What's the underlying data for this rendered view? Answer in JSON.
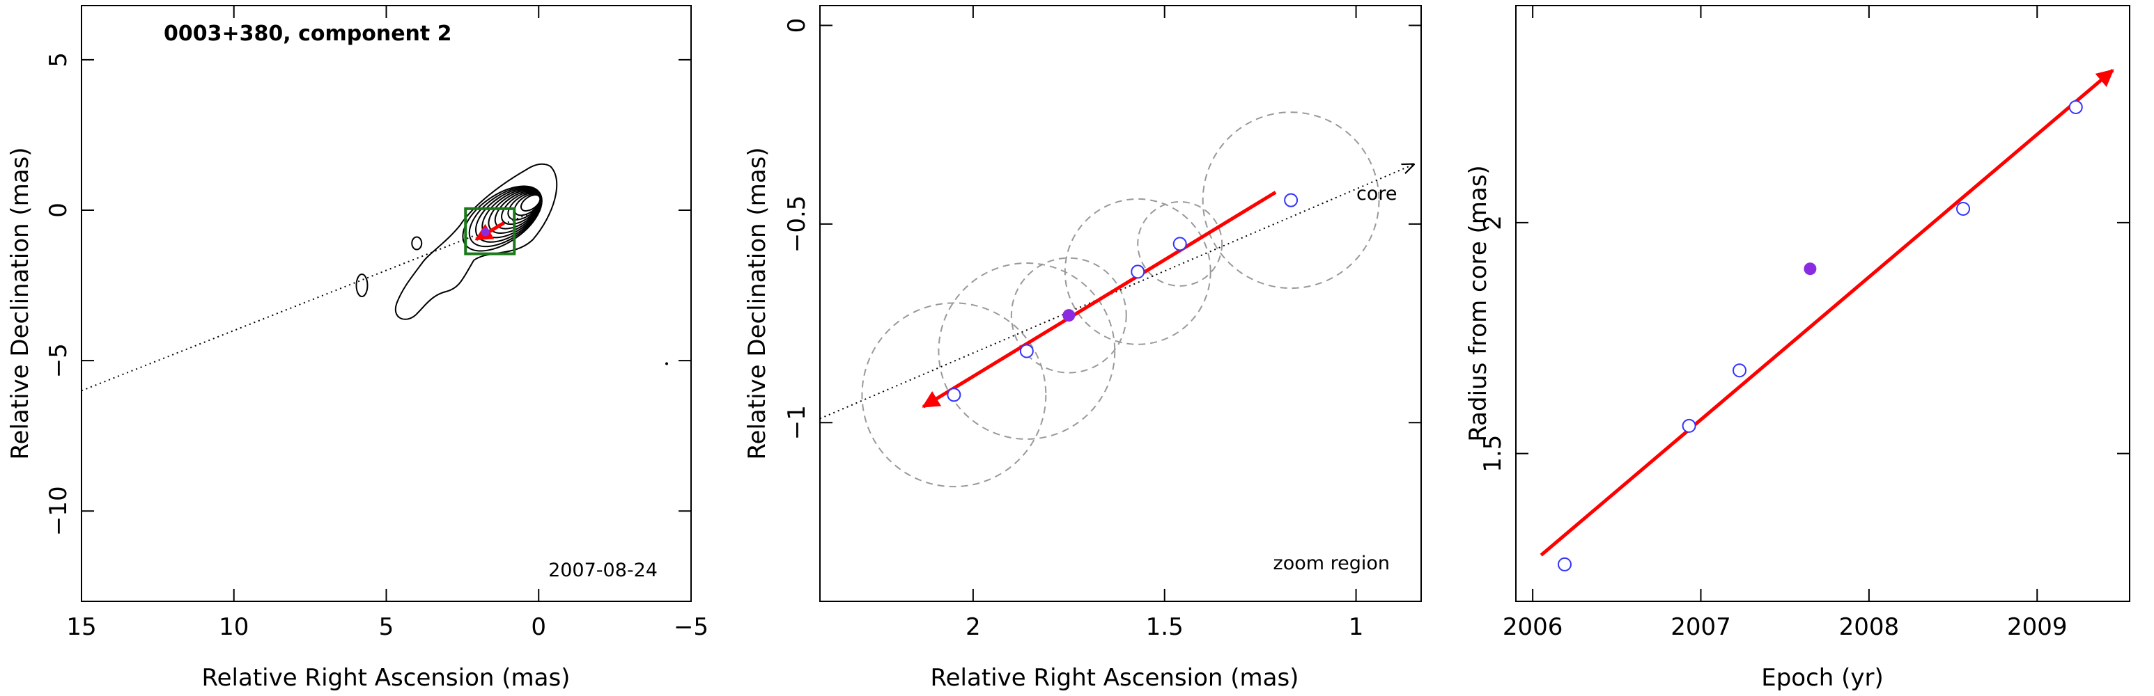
{
  "colors": {
    "motion_arrow": "#ff0000",
    "observed_epoch": "#8a2be2",
    "other_epochs": "#3333ff",
    "zoom_box": "#1a7a1a",
    "fitted_circles": "#999999",
    "contours": "#000000"
  },
  "chart_data": [
    {
      "type": "scatter",
      "subtype": "contour-map",
      "title": "0003+380, component 2",
      "xlabel": "Relative Right Ascension (mas)",
      "ylabel": "Relative Declination (mas)",
      "xlim": [
        15,
        -5
      ],
      "ylim": [
        -13,
        6.8
      ],
      "xticks": [
        15,
        10,
        5,
        0,
        -5
      ],
      "yticks": [
        5,
        0,
        -5,
        -10
      ],
      "xtick_labels": [
        "15",
        "10",
        "5",
        "0",
        "−5"
      ],
      "ytick_labels": [
        "5",
        "0",
        "−5",
        "−10"
      ],
      "epoch_label": "2007-08-24",
      "grid": false,
      "zoom_box": {
        "x": [
          2.4,
          0.8
        ],
        "y": [
          -1.45,
          0.05
        ]
      },
      "jet_axis_line": {
        "x": [
          15,
          0
        ],
        "y": [
          -6.0,
          0
        ]
      },
      "motion_arrow": {
        "from": [
          1.15,
          -0.43
        ],
        "to": [
          2.05,
          -0.97
        ]
      },
      "component_marker": [
        1.75,
        -0.73
      ],
      "contours": {
        "core_center": [
          0.3,
          0.3
        ],
        "levels": 10
      }
    },
    {
      "type": "scatter",
      "subtype": "zoom",
      "xlabel": "Relative Right Ascension (mas)",
      "ylabel": "Relative Declination (mas)",
      "xlim": [
        2.4,
        0.83
      ],
      "ylim": [
        -1.45,
        0.05
      ],
      "xticks": [
        2,
        1.5,
        1
      ],
      "yticks": [
        0,
        -0.5,
        -1
      ],
      "xtick_labels": [
        "2",
        "1.5",
        "1"
      ],
      "ytick_labels": [
        "0",
        "−0.5",
        "−1"
      ],
      "core_label": "core",
      "region_label": "zoom region",
      "grid": false,
      "series": [
        {
          "x": [
            2.05,
            1.86,
            1.57,
            1.46,
            1.17
          ],
          "y": [
            -0.93,
            -0.82,
            -0.62,
            -0.55,
            -0.44
          ]
        },
        {
          "x": [
            1.75
          ],
          "y": [
            -0.73
          ]
        }
      ],
      "circles": [
        {
          "x": 2.05,
          "y": -0.93,
          "r": 0.24
        },
        {
          "x": 1.86,
          "y": -0.82,
          "r": 0.23
        },
        {
          "x": 1.75,
          "y": -0.73,
          "r": 0.15
        },
        {
          "x": 1.57,
          "y": -0.62,
          "r": 0.19
        },
        {
          "x": 1.46,
          "y": -0.55,
          "r": 0.11
        },
        {
          "x": 1.17,
          "y": -0.44,
          "r": 0.23
        }
      ],
      "jet_axis_line": {
        "x": [
          2.4,
          0.85
        ],
        "y": [
          -0.99,
          -0.35
        ]
      },
      "motion_arrow": {
        "from": [
          1.21,
          -0.42
        ],
        "to": [
          2.13,
          -0.96
        ]
      }
    },
    {
      "type": "scatter",
      "xlabel": "Epoch (yr)",
      "ylabel": "Radius from core (mas)",
      "xlim": [
        2005.9,
        2009.55
      ],
      "ylim": [
        1.18,
        2.47
      ],
      "xticks": [
        2006,
        2007,
        2008,
        2009
      ],
      "yticks": [
        1.5,
        2
      ],
      "xtick_labels": [
        "2006",
        "2007",
        "2008",
        "2009"
      ],
      "ytick_labels": [
        "1.5",
        "2"
      ],
      "grid": false,
      "series": [
        {
          "x": [
            2006.19,
            2006.93,
            2007.23,
            2008.56,
            2009.23
          ],
          "y": [
            1.26,
            1.56,
            1.68,
            2.03,
            2.25
          ]
        },
        {
          "x": [
            2007.65
          ],
          "y": [
            1.9
          ]
        }
      ],
      "fit_arrow": {
        "from": [
          2006.05,
          1.28
        ],
        "to": [
          2009.45,
          2.33
        ]
      }
    }
  ]
}
